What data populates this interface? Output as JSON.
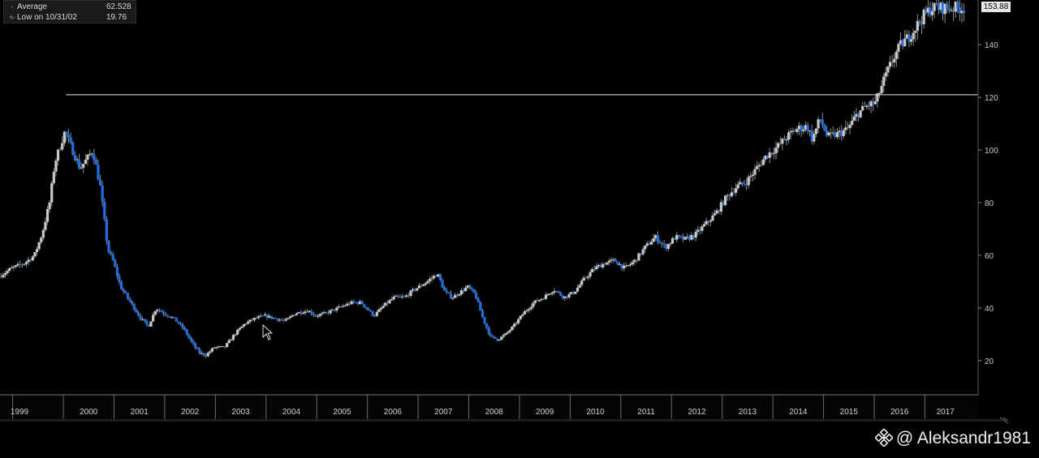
{
  "legend": {
    "average_label": "Average",
    "average_value": "62.528",
    "low_label": "Low on 10/31/02",
    "low_value": "19.76"
  },
  "last_price": "153.88",
  "watermark": {
    "icon": "binance-logo-icon",
    "text": "@ Aleksandr1981"
  },
  "colors": {
    "background": "#000000",
    "up_candle": "#c9c9c9",
    "down_candle": "#1f6fe0",
    "reference_line": "#e6e6e6",
    "axis": "#7a7a7a"
  },
  "chart_data": {
    "type": "candlestick",
    "title": "",
    "xlabel": "",
    "ylabel": "",
    "ylim": [
      7,
      157
    ],
    "y_ticks": [
      20,
      40,
      60,
      80,
      100,
      120,
      140
    ],
    "x_range": [
      1998.75,
      2017.95
    ],
    "year_labels": [
      "1999",
      "2000",
      "2001",
      "2002",
      "2003",
      "2004",
      "2005",
      "2006",
      "2007",
      "2008",
      "2009",
      "2010",
      "2011",
      "2012",
      "2013",
      "2014",
      "2015",
      "2016",
      "2017"
    ],
    "reference_line": 121,
    "grid": false,
    "legend_position": "top-left",
    "anchors": [
      [
        1998.75,
        52
      ],
      [
        1999.0,
        55
      ],
      [
        1999.25,
        57
      ],
      [
        1999.45,
        60
      ],
      [
        1999.6,
        68
      ],
      [
        1999.75,
        80
      ],
      [
        1999.85,
        95
      ],
      [
        2000.05,
        107
      ],
      [
        2000.2,
        100
      ],
      [
        2000.35,
        93
      ],
      [
        2000.5,
        97
      ],
      [
        2000.6,
        100
      ],
      [
        2000.75,
        86
      ],
      [
        2000.9,
        62
      ],
      [
        2001.0,
        58
      ],
      [
        2001.15,
        48
      ],
      [
        2001.35,
        42
      ],
      [
        2001.55,
        36
      ],
      [
        2001.7,
        33
      ],
      [
        2001.85,
        40
      ],
      [
        2002.0,
        38
      ],
      [
        2002.2,
        36
      ],
      [
        2002.4,
        32
      ],
      [
        2002.55,
        27
      ],
      [
        2002.7,
        23
      ],
      [
        2002.83,
        22
      ],
      [
        2003.0,
        25
      ],
      [
        2003.2,
        25
      ],
      [
        2003.4,
        30
      ],
      [
        2003.6,
        34
      ],
      [
        2003.8,
        36
      ],
      [
        2004.0,
        37
      ],
      [
        2004.2,
        36
      ],
      [
        2004.4,
        35
      ],
      [
        2004.6,
        38
      ],
      [
        2004.85,
        39
      ],
      [
        2005.0,
        37
      ],
      [
        2005.2,
        38
      ],
      [
        2005.45,
        40
      ],
      [
        2005.7,
        42
      ],
      [
        2005.9,
        42
      ],
      [
        2006.0,
        40
      ],
      [
        2006.15,
        37
      ],
      [
        2006.35,
        41
      ],
      [
        2006.55,
        44
      ],
      [
        2006.75,
        44
      ],
      [
        2006.95,
        47
      ],
      [
        2007.2,
        50
      ],
      [
        2007.4,
        53
      ],
      [
        2007.55,
        46
      ],
      [
        2007.7,
        44
      ],
      [
        2007.85,
        46
      ],
      [
        2008.0,
        48
      ],
      [
        2008.15,
        45
      ],
      [
        2008.3,
        36
      ],
      [
        2008.45,
        29
      ],
      [
        2008.6,
        28
      ],
      [
        2008.75,
        30
      ],
      [
        2008.9,
        33
      ],
      [
        2009.1,
        38
      ],
      [
        2009.3,
        42
      ],
      [
        2009.5,
        44
      ],
      [
        2009.7,
        47
      ],
      [
        2009.9,
        44
      ],
      [
        2010.1,
        46
      ],
      [
        2010.3,
        51
      ],
      [
        2010.5,
        55
      ],
      [
        2010.7,
        57
      ],
      [
        2010.9,
        58
      ],
      [
        2011.1,
        55
      ],
      [
        2011.3,
        58
      ],
      [
        2011.5,
        63
      ],
      [
        2011.7,
        67
      ],
      [
        2011.9,
        63
      ],
      [
        2012.1,
        67
      ],
      [
        2012.3,
        66
      ],
      [
        2012.5,
        68
      ],
      [
        2012.7,
        72
      ],
      [
        2012.9,
        76
      ],
      [
        2013.1,
        82
      ],
      [
        2013.3,
        86
      ],
      [
        2013.5,
        88
      ],
      [
        2013.7,
        93
      ],
      [
        2013.9,
        98
      ],
      [
        2014.1,
        101
      ],
      [
        2014.3,
        105
      ],
      [
        2014.5,
        108
      ],
      [
        2014.7,
        109
      ],
      [
        2014.8,
        104
      ],
      [
        2014.95,
        112
      ],
      [
        2015.1,
        105
      ],
      [
        2015.3,
        106
      ],
      [
        2015.5,
        108
      ],
      [
        2015.7,
        114
      ],
      [
        2015.9,
        117
      ],
      [
        2016.05,
        118
      ],
      [
        2016.2,
        126
      ],
      [
        2016.4,
        135
      ],
      [
        2016.55,
        140
      ],
      [
        2016.7,
        143
      ],
      [
        2016.85,
        147
      ],
      [
        2017.0,
        151
      ],
      [
        2017.15,
        154
      ]
    ]
  }
}
